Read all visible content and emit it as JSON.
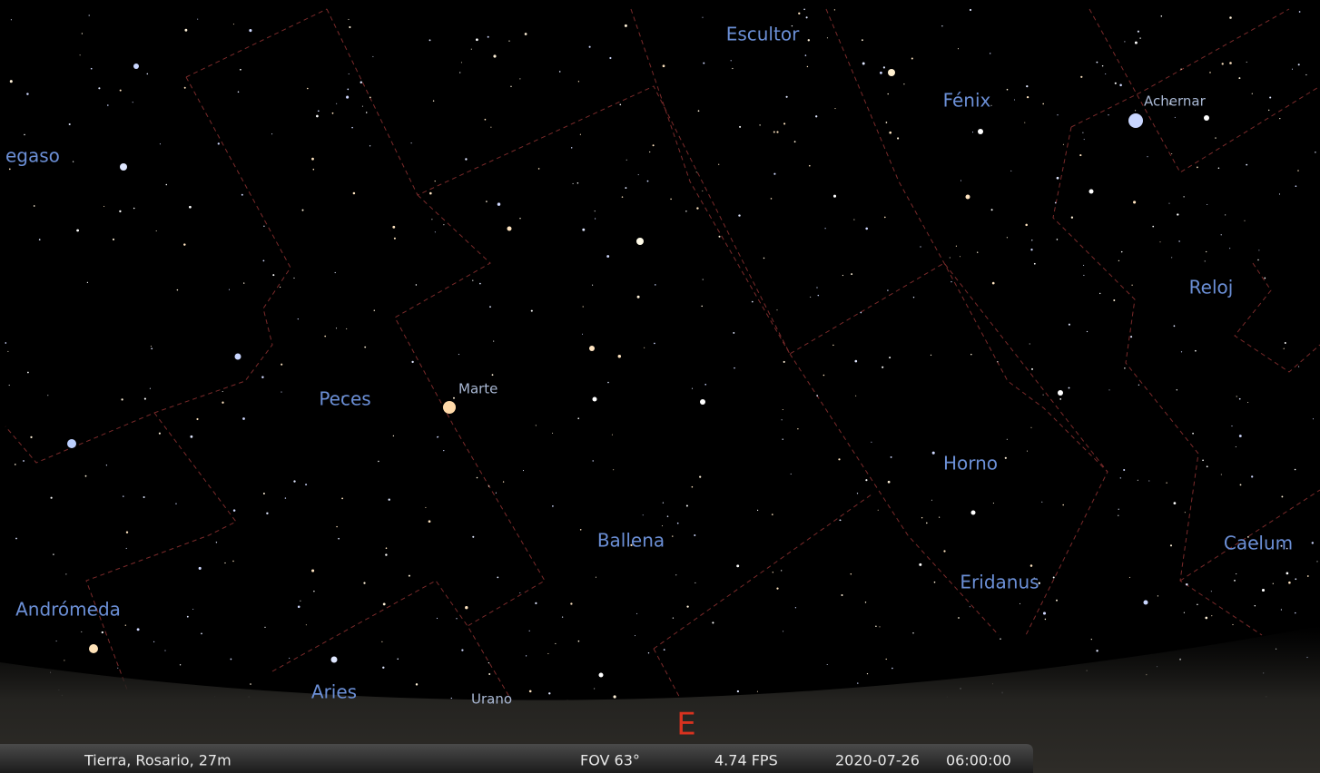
{
  "sky": {
    "constellations": [
      "Escultor",
      "Fénix",
      "egaso",
      "Reloj",
      "Peces",
      "Horno",
      "Ballena",
      "Caelum",
      "Eridanus",
      "Andrómeda",
      "Aries"
    ],
    "objects": [
      "Achernar",
      "Marte",
      "Urano"
    ],
    "cardinal": "E"
  },
  "status_bar": {
    "location": "Tierra, Rosario, 27m",
    "fov": "FOV 63°",
    "fps": "4.74 FPS",
    "date": "2020-07-26",
    "time": "06:00:00"
  }
}
